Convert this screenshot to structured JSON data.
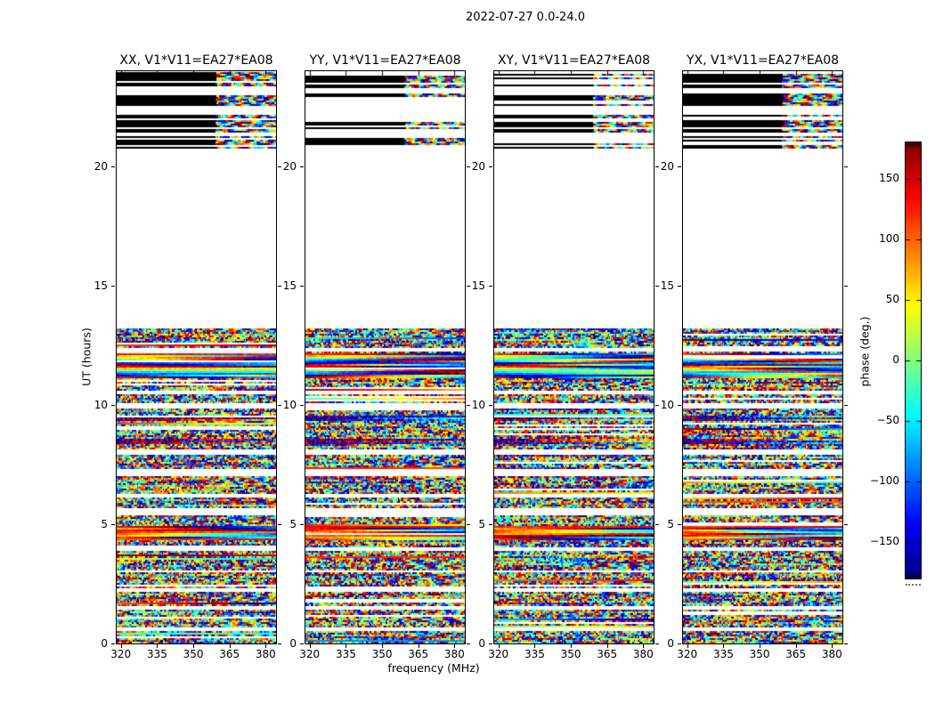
{
  "figure_title": "2022-07-27 0.0-24.0",
  "chart_data": {
    "type": "heatmap",
    "title": "2022-07-27 0.0-24.0",
    "description": "Four waterfall panels of interferometric visibility phase vs frequency (x) and UT time (y) for baseline EA27*EA08 (V1*V11), one panel per polarization product. Data present for UT 0-13.2 and UT 20.75-24 with a blank gap between; phase is noise-like, colored with a jet colormap.",
    "panels": [
      {
        "corr": "XX",
        "title": "XX, V1*V11=EA27*EA08",
        "bias": "extreme"
      },
      {
        "corr": "YY",
        "title": "YY, V1*V11=EA27*EA08",
        "bias": "warm"
      },
      {
        "corr": "XY",
        "title": "XY, V1*V11=EA27*EA08",
        "bias": "pale"
      },
      {
        "corr": "YX",
        "title": "YX, V1*V11=EA27*EA08",
        "bias": "pale"
      }
    ],
    "x": {
      "label": "frequency (MHz)",
      "min": 318.25,
      "max": 384.3,
      "ticks": [
        {
          "v": 320,
          "label": "320"
        },
        {
          "v": 335,
          "label": "335"
        },
        {
          "v": 350,
          "label": "350"
        },
        {
          "v": 365,
          "label": "365"
        },
        {
          "v": 380,
          "label": "380"
        }
      ]
    },
    "y": {
      "label": "UT (hours)",
      "min": 0,
      "max": 24,
      "ticks": [
        {
          "v": 0,
          "label": "0"
        },
        {
          "v": 5,
          "label": "5"
        },
        {
          "v": 10,
          "label": "10"
        },
        {
          "v": 15,
          "label": "15"
        },
        {
          "v": 20,
          "label": "20"
        }
      ]
    },
    "colorbar": {
      "label": "phase (deg.)",
      "min": -180,
      "max": 180,
      "colormap": "jet",
      "ticks": [
        {
          "v": 150,
          "label": "150"
        },
        {
          "v": 100,
          "label": "100"
        },
        {
          "v": 50,
          "label": "50"
        },
        {
          "v": 0,
          "label": "0"
        },
        {
          "v": -50,
          "label": "−50"
        },
        {
          "v": -100,
          "label": "−100"
        },
        {
          "v": -150,
          "label": "−150"
        }
      ]
    },
    "data_blocks": [
      {
        "ut": [
          0.0,
          13.2
        ],
        "kind": "dense",
        "skip_prob": 0.08
      },
      {
        "ut": [
          20.75,
          23.97
        ],
        "kind": "sparse",
        "skip_prob": 0.34
      }
    ],
    "gap_blocks": [
      {
        "ut": [
          13.2,
          20.75
        ]
      }
    ],
    "render": {
      "seed": 1337,
      "white_gaps": [
        [
          0.55,
          0.7
        ],
        [
          1.45,
          1.6
        ],
        [
          2.15,
          2.35
        ],
        [
          2.95,
          3.05
        ],
        [
          3.85,
          4.05
        ],
        [
          5.35,
          5.65
        ],
        [
          6.15,
          6.3
        ],
        [
          7.05,
          7.3
        ],
        [
          7.95,
          8.1
        ],
        [
          9.85,
          10.1
        ],
        [
          10.45,
          10.6
        ],
        [
          12.25,
          12.4
        ],
        [
          21.25,
          21.45
        ],
        [
          22.2,
          22.55
        ],
        [
          23.1,
          23.3
        ]
      ],
      "smooth_bands": [
        {
          "ut": [
            4.35,
            4.95
          ],
          "style": "warm"
        },
        {
          "ut": [
            11.15,
            12.15
          ],
          "style": "drift"
        }
      ],
      "dark_bands": [
        [
          8.35,
          8.6
        ],
        [
          9.35,
          9.55
        ]
      ],
      "pale_extra_skip": 0.12,
      "right_section_frac": 0.62
    }
  }
}
